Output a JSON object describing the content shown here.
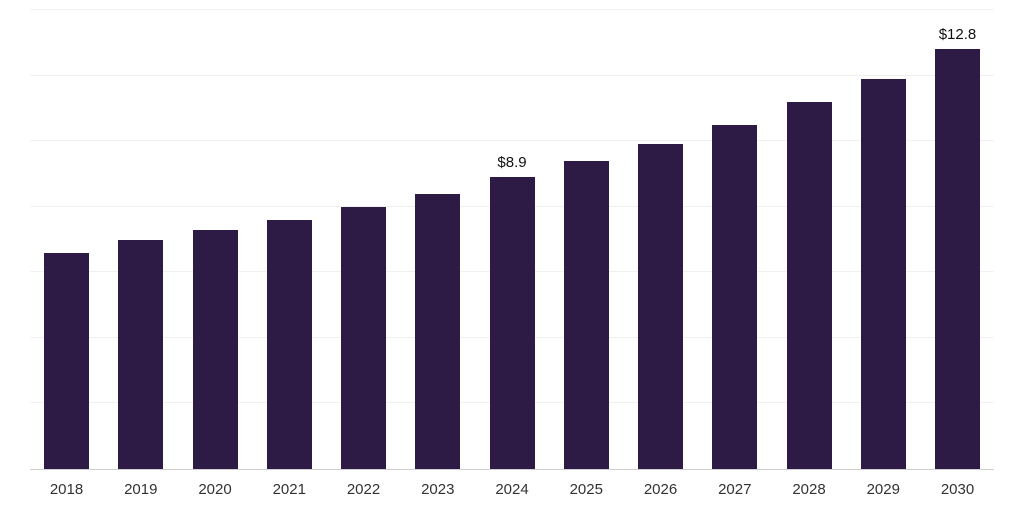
{
  "chart_data": {
    "type": "bar",
    "title": "",
    "xlabel": "",
    "ylabel": "",
    "categories": [
      "2018",
      "2019",
      "2020",
      "2021",
      "2022",
      "2023",
      "2024",
      "2025",
      "2026",
      "2027",
      "2028",
      "2029",
      "2030"
    ],
    "values": [
      6.6,
      7.0,
      7.3,
      7.6,
      8.0,
      8.4,
      8.9,
      9.4,
      9.9,
      10.5,
      11.2,
      11.9,
      12.8
    ],
    "value_labels": {
      "2024": "$8.9",
      "2030": "$12.8"
    },
    "ylim": [
      0,
      14
    ],
    "gridline_step": 2,
    "grid": true,
    "legend": "none",
    "colors": {
      "bar": "#2d1b45",
      "background": "#ffffff",
      "gridline": "#f0f0f0",
      "axis_line": "#cfcfcf",
      "tick_label": "#333333",
      "value_label": "#111111"
    }
  }
}
